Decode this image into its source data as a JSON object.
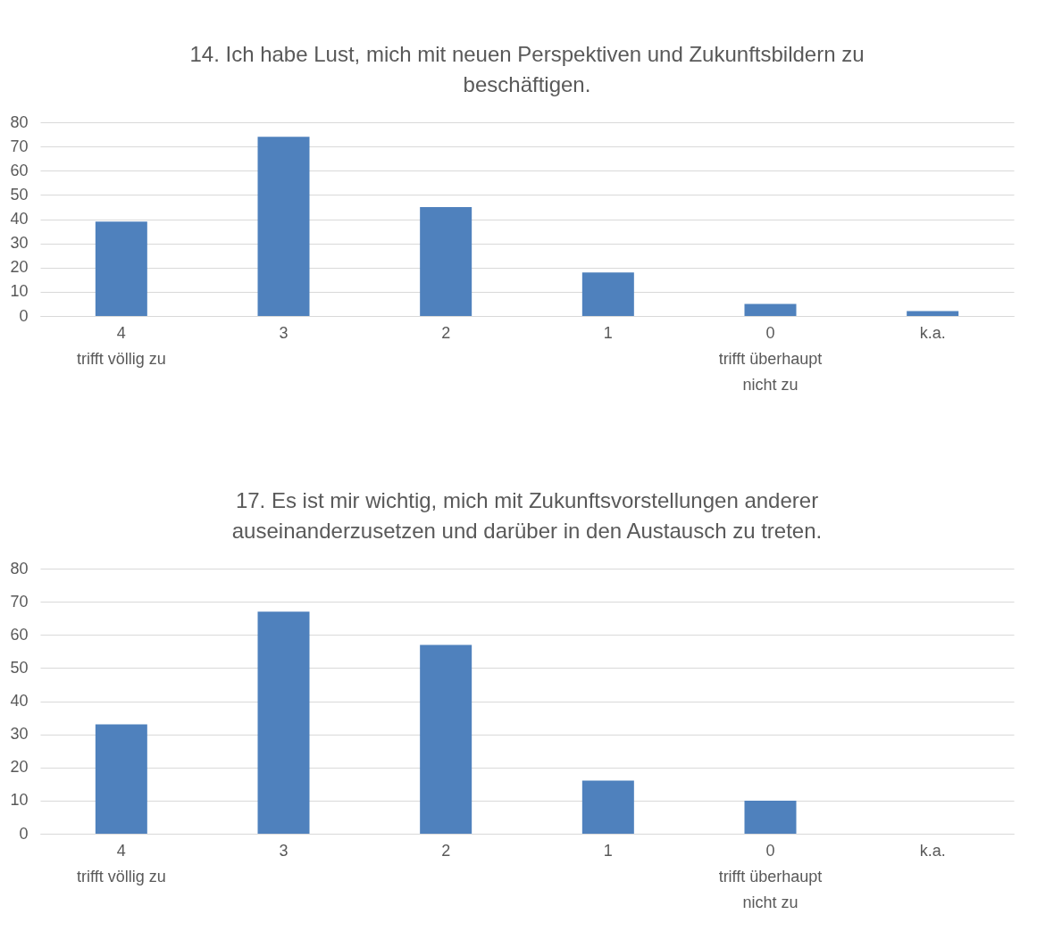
{
  "chart_data": [
    {
      "type": "bar",
      "title": "14. Ich habe Lust, mich mit neuen Perspektiven und Zukunftsbildern zu\nbeschäftigen.",
      "categories": [
        "4\ntrifft völlig zu",
        "3",
        "2",
        "1",
        "0\ntrifft überhaupt\nnicht zu",
        "k.a."
      ],
      "values": [
        39,
        74,
        45,
        18,
        5,
        2
      ],
      "color": "#4f81bd",
      "ylim": [
        0,
        80
      ],
      "yticks": [
        0,
        10,
        20,
        30,
        40,
        50,
        60,
        70,
        80
      ],
      "grid": "y"
    },
    {
      "type": "bar",
      "title": "17. Es ist mir wichtig, mich mit Zukunftsvorstellungen anderer\nauseinanderzusetzen und darüber in den Austausch zu treten.",
      "categories": [
        "4\ntrifft völlig zu",
        "3",
        "2",
        "1",
        "0\ntrifft überhaupt\nnicht zu",
        "k.a."
      ],
      "values": [
        33,
        67,
        57,
        16,
        10,
        0
      ],
      "color": "#4f81bd",
      "ylim": [
        0,
        80
      ],
      "yticks": [
        0,
        10,
        20,
        30,
        40,
        50,
        60,
        70,
        80
      ],
      "grid": "y"
    }
  ]
}
